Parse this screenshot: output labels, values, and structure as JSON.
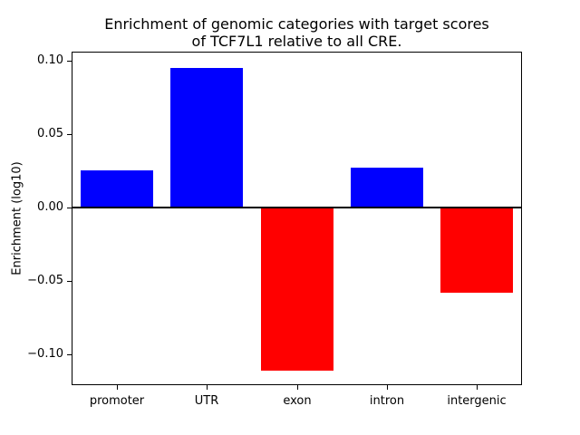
{
  "figure": {
    "background": "#ffffff",
    "title_line1": "Enrichment of genomic categories with target scores",
    "title_line2": "of TCF7L1 relative to all CRE."
  },
  "chart_data": {
    "type": "bar",
    "title": "Enrichment of genomic categories with target scores\nof TCF7L1 relative to all CRE.",
    "categories": [
      "promoter",
      "UTR",
      "exon",
      "intron",
      "intergenic"
    ],
    "values": [
      0.025,
      0.095,
      -0.111,
      0.027,
      -0.058
    ],
    "bar_colors": [
      "#0000ff",
      "#0000ff",
      "#ff0000",
      "#0000ff",
      "#ff0000"
    ],
    "positive_color": "#0000ff",
    "negative_color": "#ff0000",
    "xlabel": "",
    "ylabel": "Enrichment (log10)",
    "ylim": [
      -0.121,
      0.106
    ],
    "yticks": [
      0.1,
      0.05,
      0.0,
      -0.05,
      -0.1
    ],
    "ytick_labels": [
      "0.10",
      "0.05",
      "0.00",
      "−0.05",
      "−0.10"
    ],
    "grid": false,
    "legend": null,
    "zero_line": true,
    "axis_color": "#000000",
    "background_color": "#ffffff"
  }
}
